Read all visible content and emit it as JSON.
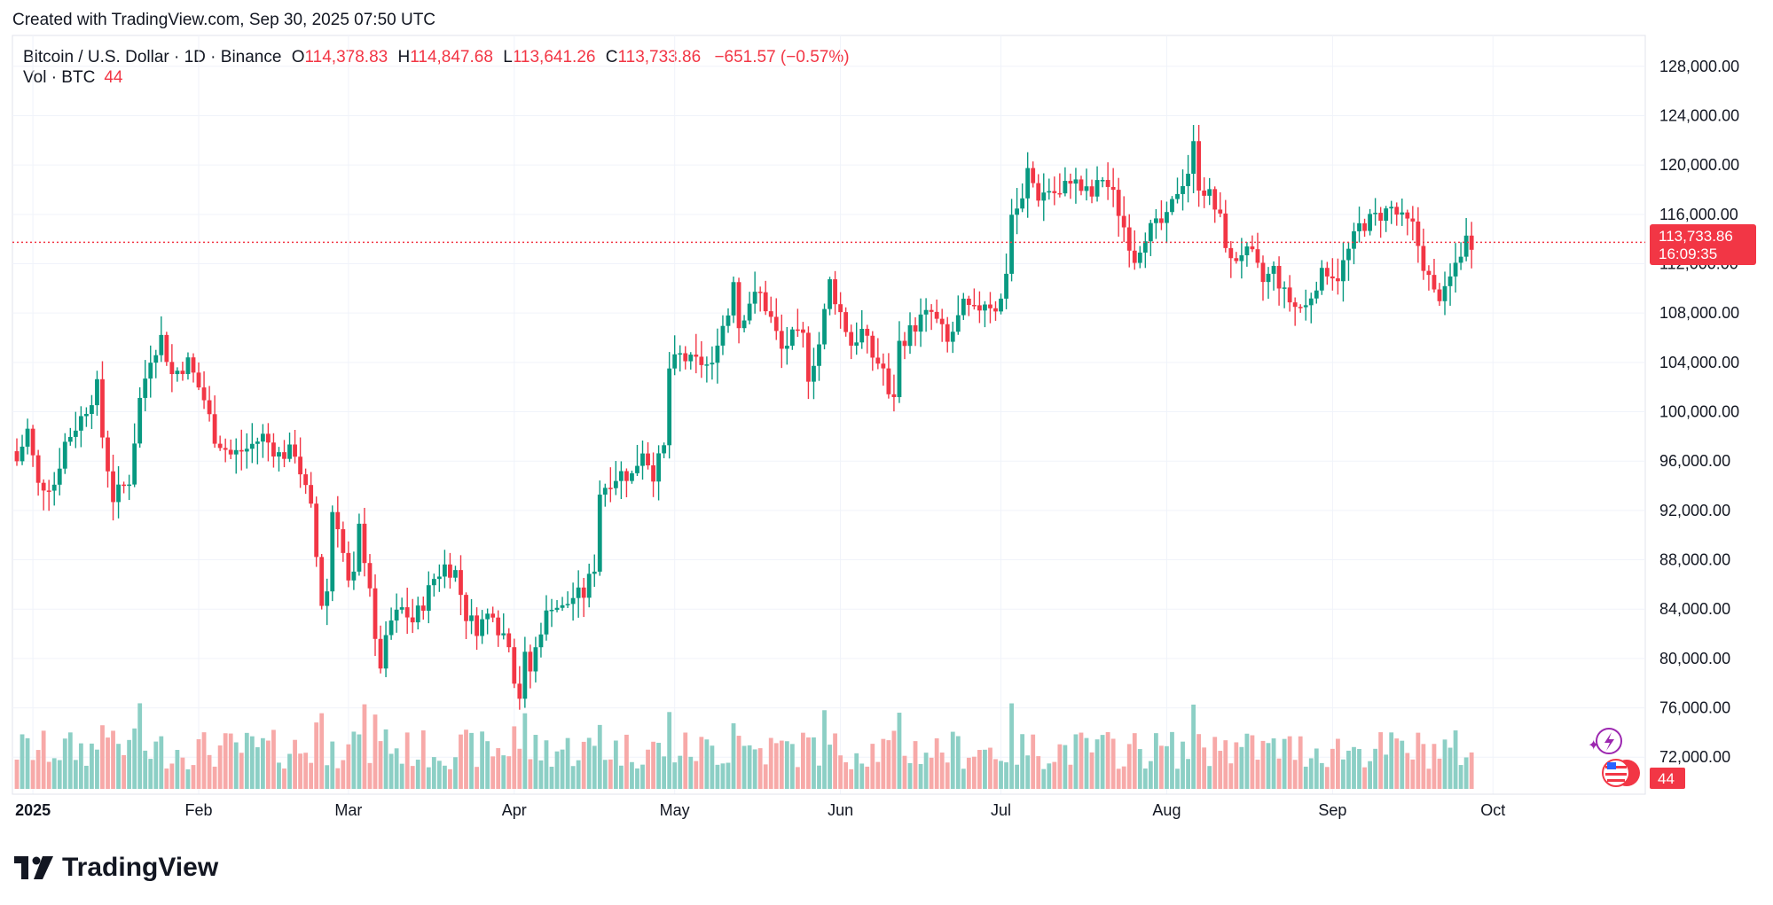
{
  "header": {
    "created": "Created with TradingView.com, Sep 30, 2025 07:50 UTC"
  },
  "legend": {
    "symbol": "Bitcoin / U.S. Dollar · 1D · Binance",
    "open_label": "O",
    "open": "114,378.83",
    "high_label": "H",
    "high": "114,847.68",
    "low_label": "L",
    "low": "113,641.26",
    "close_label": "C",
    "close": "113,733.86",
    "change": "−651.57 (−0.57%)",
    "vol_label": "Vol · BTC",
    "vol_value": "44"
  },
  "price_tag": {
    "price": "113,733.86",
    "countdown": "16:09:35"
  },
  "vol_tag": "44",
  "brand": {
    "name": "TradingView"
  },
  "colors": {
    "up": "#089981",
    "down": "#F23645",
    "vol_up": "#8CCFC5",
    "vol_down": "#F7A9A8",
    "grid": "#F0F3FA"
  },
  "chart_data": {
    "type": "candlestick",
    "title": "Bitcoin / U.S. Dollar · 1D · Binance",
    "y_ticks": [
      "72,000.00",
      "76,000.00",
      "80,000.00",
      "84,000.00",
      "88,000.00",
      "92,000.00",
      "96,000.00",
      "100,000.00",
      "104,000.00",
      "108,000.00",
      "112,000.00",
      "116,000.00",
      "120,000.00",
      "124,000.00",
      "128,000.00"
    ],
    "y_tick_values": [
      72000,
      76000,
      80000,
      84000,
      88000,
      92000,
      96000,
      100000,
      104000,
      108000,
      112000,
      116000,
      120000,
      124000,
      128000
    ],
    "ylim": [
      69000,
      130500
    ],
    "x_labels": [
      {
        "label": "2025",
        "day": 3,
        "bold": true
      },
      {
        "label": "Feb",
        "day": 34,
        "bold": false
      },
      {
        "label": "Mar",
        "day": 62,
        "bold": false
      },
      {
        "label": "Apr",
        "day": 93,
        "bold": false
      },
      {
        "label": "May",
        "day": 123,
        "bold": false
      },
      {
        "label": "Jun",
        "day": 154,
        "bold": false
      },
      {
        "label": "Jul",
        "day": 184,
        "bold": false
      },
      {
        "label": "Aug",
        "day": 215,
        "bold": false
      },
      {
        "label": "Sep",
        "day": 246,
        "bold": false
      },
      {
        "label": "Oct",
        "day": 276,
        "bold": false
      }
    ],
    "price_series": [
      {
        "x": 0,
        "close": 96000
      },
      {
        "x": 2,
        "close": 98500
      },
      {
        "x": 4,
        "close": 94000
      },
      {
        "x": 7,
        "close": 94200
      },
      {
        "x": 9,
        "close": 97500
      },
      {
        "x": 12,
        "close": 99500
      },
      {
        "x": 15,
        "close": 102000
      },
      {
        "x": 16,
        "close": 98000
      },
      {
        "x": 18,
        "close": 93000
      },
      {
        "x": 21,
        "close": 94500
      },
      {
        "x": 23,
        "close": 101000
      },
      {
        "x": 25,
        "close": 104500
      },
      {
        "x": 27,
        "close": 106000
      },
      {
        "x": 29,
        "close": 103000
      },
      {
        "x": 32,
        "close": 104000
      },
      {
        "x": 35,
        "close": 101000
      },
      {
        "x": 37,
        "close": 98000
      },
      {
        "x": 40,
        "close": 96500
      },
      {
        "x": 43,
        "close": 97000
      },
      {
        "x": 46,
        "close": 98000
      },
      {
        "x": 49,
        "close": 96500
      },
      {
        "x": 52,
        "close": 96800
      },
      {
        "x": 55,
        "close": 92000
      },
      {
        "x": 57,
        "close": 84500
      },
      {
        "x": 58,
        "close": 85500
      },
      {
        "x": 59,
        "close": 92000
      },
      {
        "x": 60,
        "close": 91000
      },
      {
        "x": 62,
        "close": 86000
      },
      {
        "x": 63,
        "close": 86500
      },
      {
        "x": 64,
        "close": 90500
      },
      {
        "x": 66,
        "close": 86000
      },
      {
        "x": 67,
        "close": 81000
      },
      {
        "x": 68,
        "close": 79500
      },
      {
        "x": 70,
        "close": 83000
      },
      {
        "x": 72,
        "close": 84000
      },
      {
        "x": 74,
        "close": 83000
      },
      {
        "x": 76,
        "close": 84500
      },
      {
        "x": 78,
        "close": 86500
      },
      {
        "x": 80,
        "close": 87500
      },
      {
        "x": 82,
        "close": 87000
      },
      {
        "x": 84,
        "close": 83500
      },
      {
        "x": 86,
        "close": 82500
      },
      {
        "x": 88,
        "close": 83500
      },
      {
        "x": 89,
        "close": 84000
      },
      {
        "x": 90,
        "close": 82500
      },
      {
        "x": 92,
        "close": 81500
      },
      {
        "x": 93,
        "close": 78500
      },
      {
        "x": 94,
        "close": 77000
      },
      {
        "x": 95,
        "close": 80000
      },
      {
        "x": 96,
        "close": 79000
      },
      {
        "x": 98,
        "close": 82500
      },
      {
        "x": 100,
        "close": 84500
      },
      {
        "x": 102,
        "close": 84000
      },
      {
        "x": 104,
        "close": 85000
      },
      {
        "x": 106,
        "close": 85200
      },
      {
        "x": 108,
        "close": 87500
      },
      {
        "x": 109,
        "close": 93500
      },
      {
        "x": 111,
        "close": 94500
      },
      {
        "x": 113,
        "close": 95000
      },
      {
        "x": 115,
        "close": 94800
      },
      {
        "x": 117,
        "close": 97000
      },
      {
        "x": 119,
        "close": 95000
      },
      {
        "x": 121,
        "close": 97000
      },
      {
        "x": 122,
        "close": 103500
      },
      {
        "x": 124,
        "close": 104500
      },
      {
        "x": 126,
        "close": 104000
      },
      {
        "x": 128,
        "close": 104000
      },
      {
        "x": 130,
        "close": 103500
      },
      {
        "x": 131,
        "close": 106000
      },
      {
        "x": 133,
        "close": 108000
      },
      {
        "x": 134,
        "close": 111000
      },
      {
        "x": 135,
        "close": 107000
      },
      {
        "x": 137,
        "close": 109000
      },
      {
        "x": 139,
        "close": 109500
      },
      {
        "x": 141,
        "close": 107500
      },
      {
        "x": 143,
        "close": 105000
      },
      {
        "x": 145,
        "close": 106000
      },
      {
        "x": 147,
        "close": 106000
      },
      {
        "x": 148,
        "close": 103000
      },
      {
        "x": 150,
        "close": 105500
      },
      {
        "x": 151,
        "close": 108000
      },
      {
        "x": 152,
        "close": 110500
      },
      {
        "x": 154,
        "close": 108000
      },
      {
        "x": 156,
        "close": 105500
      },
      {
        "x": 158,
        "close": 106500
      },
      {
        "x": 160,
        "close": 104500
      },
      {
        "x": 162,
        "close": 103500
      },
      {
        "x": 163,
        "close": 101000
      },
      {
        "x": 164,
        "close": 101500
      },
      {
        "x": 165,
        "close": 105500
      },
      {
        "x": 167,
        "close": 106500
      },
      {
        "x": 169,
        "close": 107500
      },
      {
        "x": 171,
        "close": 108000
      },
      {
        "x": 173,
        "close": 106500
      },
      {
        "x": 174,
        "close": 105500
      },
      {
        "x": 176,
        "close": 107500
      },
      {
        "x": 177,
        "close": 108500
      },
      {
        "x": 179,
        "close": 108000
      },
      {
        "x": 181,
        "close": 109000
      },
      {
        "x": 183,
        "close": 108500
      },
      {
        "x": 184,
        "close": 109000
      },
      {
        "x": 185,
        "close": 111500
      },
      {
        "x": 186,
        "close": 116000
      },
      {
        "x": 188,
        "close": 117000
      },
      {
        "x": 189,
        "close": 119500
      },
      {
        "x": 191,
        "close": 117500
      },
      {
        "x": 193,
        "close": 118000
      },
      {
        "x": 195,
        "close": 117500
      },
      {
        "x": 197,
        "close": 119000
      },
      {
        "x": 199,
        "close": 118000
      },
      {
        "x": 201,
        "close": 117500
      },
      {
        "x": 203,
        "close": 119000
      },
      {
        "x": 205,
        "close": 117500
      },
      {
        "x": 207,
        "close": 115000
      },
      {
        "x": 209,
        "close": 112500
      },
      {
        "x": 211,
        "close": 114500
      },
      {
        "x": 213,
        "close": 115000
      },
      {
        "x": 215,
        "close": 115500
      },
      {
        "x": 217,
        "close": 118000
      },
      {
        "x": 219,
        "close": 119500
      },
      {
        "x": 220,
        "close": 121500
      },
      {
        "x": 221,
        "close": 118500
      },
      {
        "x": 223,
        "close": 117500
      },
      {
        "x": 225,
        "close": 115500
      },
      {
        "x": 227,
        "close": 112000
      },
      {
        "x": 229,
        "close": 113000
      },
      {
        "x": 231,
        "close": 112500
      },
      {
        "x": 233,
        "close": 110500
      },
      {
        "x": 235,
        "close": 111500
      },
      {
        "x": 237,
        "close": 109500
      },
      {
        "x": 239,
        "close": 108500
      },
      {
        "x": 241,
        "close": 108500
      },
      {
        "x": 243,
        "close": 110500
      },
      {
        "x": 245,
        "close": 111500
      },
      {
        "x": 247,
        "close": 111000
      },
      {
        "x": 249,
        "close": 113000
      },
      {
        "x": 251,
        "close": 115000
      },
      {
        "x": 253,
        "close": 115500
      },
      {
        "x": 255,
        "close": 116000
      },
      {
        "x": 257,
        "close": 116500
      },
      {
        "x": 259,
        "close": 115500
      },
      {
        "x": 261,
        "close": 115000
      },
      {
        "x": 263,
        "close": 112000
      },
      {
        "x": 265,
        "close": 109500
      },
      {
        "x": 267,
        "close": 109500
      },
      {
        "x": 269,
        "close": 112000
      },
      {
        "x": 271,
        "close": 114000
      },
      {
        "x": 272,
        "close": 113734
      }
    ],
    "volume_series": {
      "current_value": 44
    },
    "last_price": 113733.86,
    "grid": true,
    "legend_position": "top-left"
  }
}
